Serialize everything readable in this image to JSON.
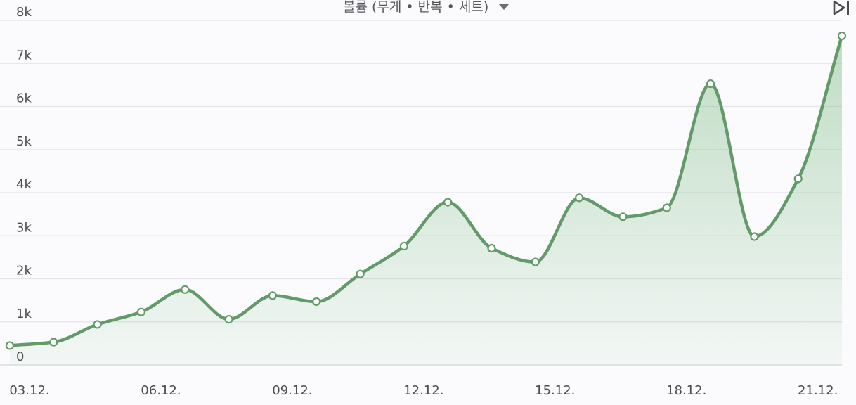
{
  "header": {
    "metric_label": "볼륨 (무게 • 반복 • 세트)",
    "dropdown_icon": "caret-down-icon",
    "skip_icon": "skip-to-end-icon"
  },
  "colors": {
    "line": "#629a6a",
    "fill": "#8fc395",
    "point_fill": "#ffffff",
    "grid": "#e4e4ea",
    "text": "#4a4c50"
  },
  "chart_data": {
    "type": "area",
    "title": "",
    "xlabel": "",
    "ylabel": "",
    "ylim": [
      0,
      8000
    ],
    "y_ticks": [
      0,
      1000,
      2000,
      3000,
      4000,
      5000,
      6000,
      7000,
      8000
    ],
    "y_tick_labels": [
      "0",
      "1k",
      "2k",
      "3k",
      "4k",
      "5k",
      "6k",
      "7k",
      "8k"
    ],
    "x_tick_labels": [
      "03.12.",
      "06.12.",
      "09.12.",
      "12.12.",
      "15.12.",
      "18.12.",
      "21.12."
    ],
    "x": [
      "03.12.",
      "04.12.",
      "05.12.",
      "06.12.",
      "07.12.",
      "08.12.",
      "09.12.",
      "10.12.",
      "11.12.",
      "12.12.",
      "13.12.",
      "14.12.",
      "15.12.",
      "16.12.",
      "17.12.",
      "18.12.",
      "19.12.",
      "20.12.",
      "21.12.",
      "22.12."
    ],
    "values": [
      450,
      530,
      940,
      1230,
      1750,
      1060,
      1610,
      1470,
      2110,
      2760,
      3780,
      2710,
      2390,
      3880,
      3440,
      3650,
      6530,
      2980,
      4320,
      7640
    ],
    "grid": true,
    "smooth": true,
    "legend": "none"
  }
}
